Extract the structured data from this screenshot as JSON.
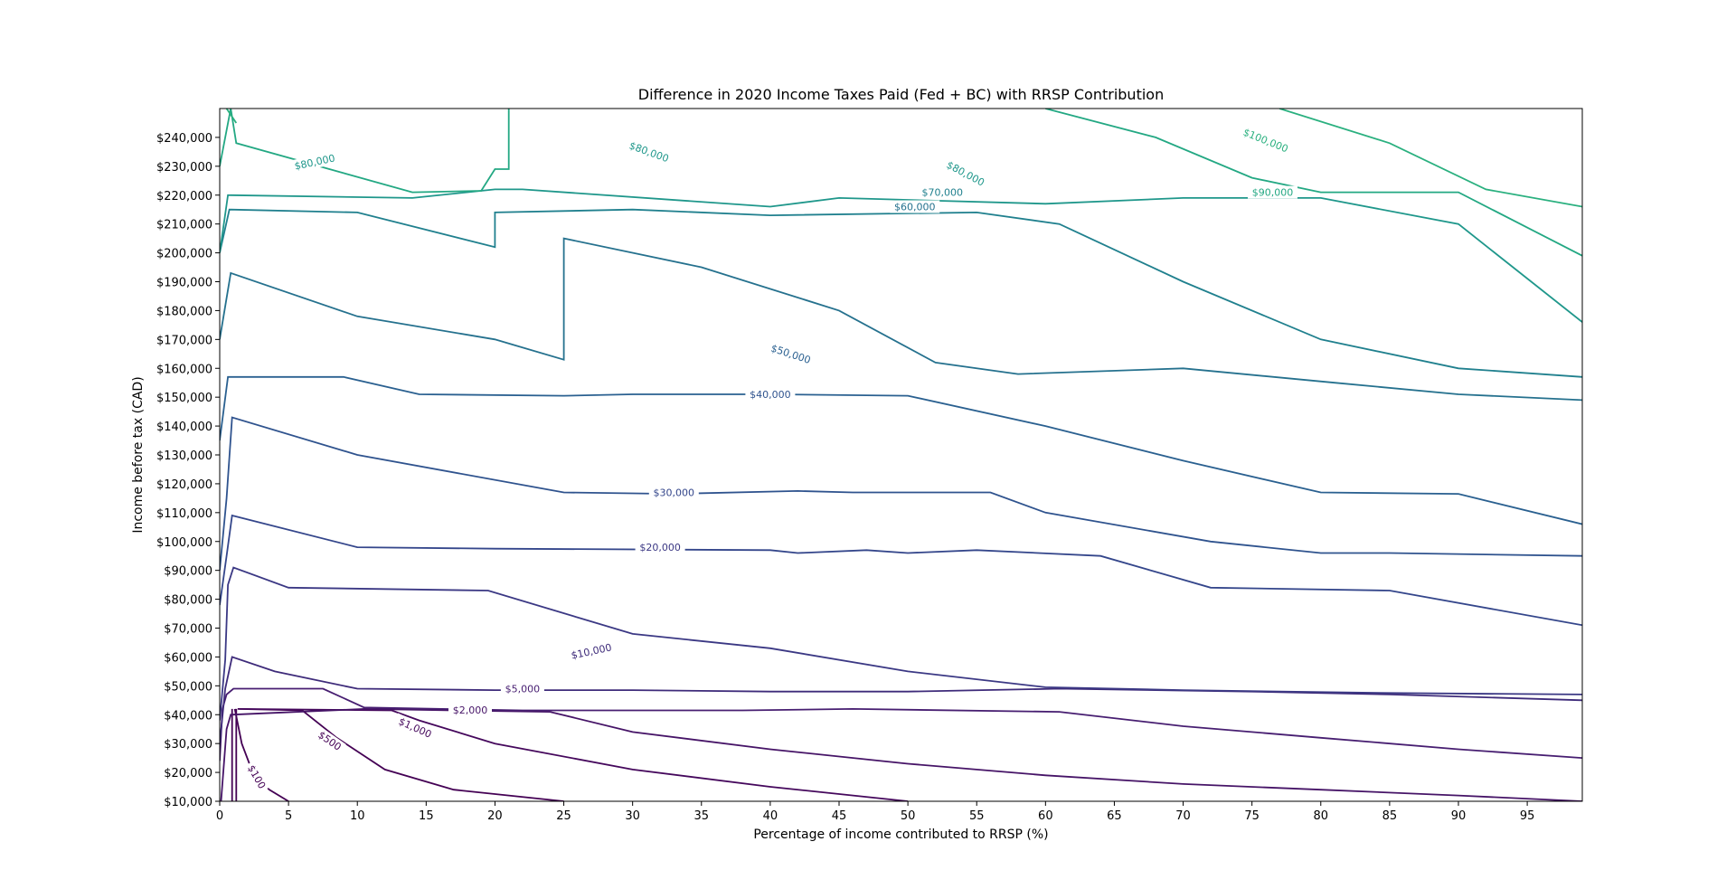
{
  "chart_data": {
    "type": "contour",
    "title": "Difference in 2020 Income Taxes Paid (Fed + BC) with RRSP Contribution",
    "xlabel": "Percentage of income contributed to RRSP (%)",
    "ylabel": "Income before tax (CAD)",
    "xlim": [
      0,
      99
    ],
    "ylim": [
      10000,
      250000
    ],
    "x_ticks": [
      0,
      5,
      10,
      15,
      20,
      25,
      30,
      35,
      40,
      45,
      50,
      55,
      60,
      65,
      70,
      75,
      80,
      85,
      90,
      95
    ],
    "x_tick_labels": [
      "0",
      "5",
      "10",
      "15",
      "20",
      "25",
      "30",
      "35",
      "40",
      "45",
      "50",
      "55",
      "60",
      "65",
      "70",
      "75",
      "80",
      "85",
      "90",
      "95"
    ],
    "y_ticks": [
      10000,
      20000,
      30000,
      40000,
      50000,
      60000,
      70000,
      80000,
      90000,
      100000,
      110000,
      120000,
      130000,
      140000,
      150000,
      160000,
      170000,
      180000,
      190000,
      200000,
      210000,
      220000,
      230000,
      240000
    ],
    "y_tick_labels": [
      "$10,000",
      "$20,000",
      "$30,000",
      "$40,000",
      "$50,000",
      "$60,000",
      "$70,000",
      "$80,000",
      "$90,000",
      "$100,000",
      "$110,000",
      "$120,000",
      "$130,000",
      "$140,000",
      "$150,000",
      "$160,000",
      "$170,000",
      "$180,000",
      "$190,000",
      "$200,000",
      "$210,000",
      "$220,000",
      "$230,000",
      "$240,000"
    ],
    "grid": false,
    "levels": [
      {
        "label": "$100",
        "color": "#440154",
        "lines": [
          [
            [
              0.9,
              10000
            ],
            [
              0.9,
              42000
            ]
          ],
          [
            [
              1.1,
              42000
            ],
            [
              1.6,
              30000
            ],
            [
              2.4,
              20000
            ],
            [
              3.6,
              14000
            ],
            [
              5,
              10000
            ]
          ]
        ],
        "labels": [
          {
            "x": 2.7,
            "y": 18500,
            "rotate": 60
          }
        ]
      },
      {
        "label": "$500",
        "color": "#440154",
        "lines": [
          [
            [
              1.2,
              10000
            ],
            [
              1.2,
              42000
            ]
          ],
          [
            [
              1.3,
              42000
            ],
            [
              6,
              41500
            ],
            [
              8.5,
              32000
            ],
            [
              12,
              21000
            ],
            [
              17,
              14000
            ],
            [
              25,
              10000
            ]
          ]
        ],
        "labels": [
          {
            "x": 8,
            "y": 31000,
            "rotate": 35
          }
        ]
      },
      {
        "label": "$1,000",
        "color": "#45085c",
        "lines": [
          [
            [
              1.4,
              42000
            ],
            [
              12.5,
              41500
            ],
            [
              14.5,
              38000
            ],
            [
              20,
              30000
            ],
            [
              30,
              21000
            ],
            [
              40,
              15000
            ],
            [
              50,
              10000
            ]
          ]
        ],
        "labels": [
          {
            "x": 14.2,
            "y": 35500,
            "rotate": 24
          }
        ]
      },
      {
        "label": "$2,000",
        "color": "#461467",
        "lines": [
          [
            [
              0.1,
              10000
            ],
            [
              0.5,
              35000
            ],
            [
              0.8,
              40000
            ],
            [
              10.5,
              42000
            ],
            [
              24,
              41000
            ],
            [
              30,
              34000
            ],
            [
              40,
              28000
            ],
            [
              50,
              23000
            ],
            [
              60,
              19000
            ],
            [
              70,
              16000
            ],
            [
              80,
              14000
            ],
            [
              90,
              12000
            ],
            [
              99,
              10000
            ]
          ]
        ],
        "labels": [
          {
            "x": 18.2,
            "y": 41700,
            "rotate": 0
          }
        ]
      },
      {
        "label": "$5,000",
        "color": "#471e71",
        "lines": [
          [
            [
              0,
              24000
            ],
            [
              0.2,
              42000
            ],
            [
              0.5,
              47000
            ],
            [
              1,
              49000
            ],
            [
              7.5,
              49000
            ],
            [
              10.5,
              42500
            ],
            [
              22,
              41500
            ],
            [
              38,
              41500
            ],
            [
              46,
              42000
            ],
            [
              61,
              41000
            ],
            [
              70,
              36000
            ],
            [
              80,
              32000
            ],
            [
              90,
              28000
            ],
            [
              99,
              25000
            ]
          ]
        ],
        "labels": [
          {
            "x": 22,
            "y": 49000,
            "rotate": 0
          }
        ]
      },
      {
        "label": "$10,000",
        "color": "#3e2b7a",
        "lines": [
          [
            [
              0,
              30000
            ],
            [
              0.4,
              49000
            ],
            [
              0.9,
              60000
            ],
            [
              4,
              55000
            ],
            [
              10,
              49000
            ],
            [
              20,
              48500
            ],
            [
              30,
              48500
            ],
            [
              40,
              48000
            ],
            [
              50,
              48000
            ],
            [
              61,
              49000
            ],
            [
              75,
              48000
            ],
            [
              85,
              47000
            ],
            [
              99,
              45000
            ]
          ]
        ],
        "labels": [
          {
            "x": 27,
            "y": 62000,
            "rotate": -12
          }
        ]
      },
      {
        "label": "$20,000",
        "color": "#3b3884",
        "lines": [
          [
            [
              0,
              38000
            ],
            [
              0.4,
              59000
            ],
            [
              0.6,
              85000
            ],
            [
              1,
              91000
            ],
            [
              5,
              84000
            ],
            [
              19.5,
              83000
            ],
            [
              30,
              68000
            ],
            [
              40,
              63000
            ],
            [
              50,
              55000
            ],
            [
              60,
              49500
            ],
            [
              70,
              48500
            ],
            [
              85,
              47500
            ],
            [
              99,
              47000
            ]
          ]
        ],
        "labels": [
          {
            "x": 32,
            "y": 98000,
            "rotate": 0
          }
        ]
      },
      {
        "label": "$30,000",
        "color": "#34468b",
        "lines": [
          [
            [
              0,
              78000
            ],
            [
              0.5,
              95000
            ],
            [
              0.9,
              109000
            ],
            [
              10,
              98000
            ],
            [
              20,
              97500
            ],
            [
              40,
              97000
            ],
            [
              42,
              96000
            ],
            [
              47,
              97000
            ],
            [
              50,
              96000
            ],
            [
              55,
              97000
            ],
            [
              64,
              95000
            ],
            [
              72,
              84000
            ],
            [
              85,
              83000
            ],
            [
              99,
              71000
            ]
          ]
        ],
        "labels": [
          {
            "x": 33,
            "y": 117000,
            "rotate": 0
          }
        ]
      },
      {
        "label": "$40,000",
        "color": "#2f538e",
        "lines": [
          [
            [
              0,
              90000
            ],
            [
              0.5,
              115000
            ],
            [
              0.9,
              143000
            ],
            [
              10,
              130000
            ],
            [
              25,
              117000
            ],
            [
              33,
              116500
            ],
            [
              42,
              117500
            ],
            [
              46,
              117000
            ],
            [
              56,
              117000
            ],
            [
              60,
              110000
            ],
            [
              72,
              100000
            ],
            [
              80,
              96000
            ],
            [
              85,
              96000
            ],
            [
              99,
              95000
            ]
          ]
        ],
        "labels": [
          {
            "x": 40,
            "y": 151000,
            "rotate": 0
          }
        ]
      },
      {
        "label": "$50,000",
        "color": "#2a6090",
        "lines": [
          [
            [
              0,
              135000
            ],
            [
              0.6,
              157000
            ],
            [
              9,
              157000
            ],
            [
              14.5,
              151000
            ],
            [
              25,
              150500
            ],
            [
              30,
              151000
            ],
            [
              40,
              151000
            ],
            [
              50,
              150500
            ],
            [
              60,
              140000
            ],
            [
              70,
              128000
            ],
            [
              80,
              117000
            ],
            [
              90,
              116500
            ],
            [
              99,
              106000
            ]
          ]
        ],
        "labels": [
          {
            "x": 41.5,
            "y": 165000,
            "rotate": 18
          }
        ]
      },
      {
        "label": "$60,000",
        "color": "#25718e",
        "lines": [
          [
            [
              0,
              170000
            ],
            [
              0.8,
              193000
            ],
            [
              10,
              178000
            ],
            [
              20,
              170000
            ],
            [
              25,
              163000
            ],
            [
              25,
              205000
            ],
            [
              35,
              195000
            ],
            [
              45,
              180000
            ],
            [
              52,
              162000
            ],
            [
              58,
              158000
            ],
            [
              70,
              160000
            ],
            [
              81,
              155000
            ],
            [
              90,
              151000
            ],
            [
              99,
              149000
            ]
          ]
        ],
        "labels": [
          {
            "x": 50.5,
            "y": 216000,
            "rotate": 0
          }
        ]
      },
      {
        "label": "$70,000",
        "color": "#20808e",
        "lines": [
          [
            [
              0,
              200000
            ],
            [
              0.7,
              215000
            ],
            [
              10,
              214000
            ],
            [
              20,
              202000
            ],
            [
              20,
              214000
            ],
            [
              30,
              215000
            ],
            [
              40,
              213000
            ],
            [
              55,
              214000
            ],
            [
              61,
              210000
            ],
            [
              70,
              190000
            ],
            [
              80,
              170000
            ],
            [
              90,
              160000
            ],
            [
              99,
              157000
            ]
          ]
        ],
        "labels": [
          {
            "x": 52.5,
            "y": 221000,
            "rotate": 0
          }
        ]
      },
      {
        "label": "$80,000",
        "color": "#1f978b",
        "lines": [
          [
            [
              0,
              200000
            ],
            [
              0.6,
              220000
            ],
            [
              14,
              219000
            ],
            [
              20,
              222000
            ],
            [
              22,
              222000
            ],
            [
              40,
              216000
            ],
            [
              45,
              219000
            ],
            [
              60,
              217000
            ],
            [
              70,
              219000
            ],
            [
              80,
              219000
            ],
            [
              90,
              210000
            ],
            [
              99,
              176000
            ]
          ]
        ],
        "labels": [
          {
            "x": 6.9,
            "y": 231500,
            "rotate": -12
          },
          {
            "x": 31.2,
            "y": 235000,
            "rotate": 20
          },
          {
            "x": 54.2,
            "y": 227500,
            "rotate": 28
          }
        ]
      },
      {
        "label": "$90,000",
        "color": "#23a883",
        "lines": [
          [
            [
              0,
              230000
            ],
            [
              0.8,
              250000
            ],
            [
              1.2,
              238000
            ],
            [
              14,
              221000
            ],
            [
              19,
              221500
            ],
            [
              20,
              229000
            ],
            [
              21,
              229000
            ],
            [
              21,
              250000
            ]
          ],
          [
            [
              60,
              250000
            ],
            [
              68,
              240000
            ],
            [
              75,
              226000
            ],
            [
              80,
              221000
            ],
            [
              90,
              221000
            ],
            [
              99,
              199000
            ]
          ]
        ],
        "labels": [
          {
            "x": 76.5,
            "y": 221000,
            "rotate": 0
          }
        ]
      },
      {
        "label": "$100,000",
        "color": "#2ab07f",
        "lines": [
          [
            [
              0.5,
              250000
            ],
            [
              1.2,
              245000
            ]
          ],
          [
            [
              77,
              250000
            ],
            [
              85,
              238000
            ],
            [
              92,
              222000
            ],
            [
              99,
              216000
            ]
          ]
        ],
        "labels": [
          {
            "x": 76,
            "y": 239000,
            "rotate": 22
          }
        ]
      }
    ]
  }
}
